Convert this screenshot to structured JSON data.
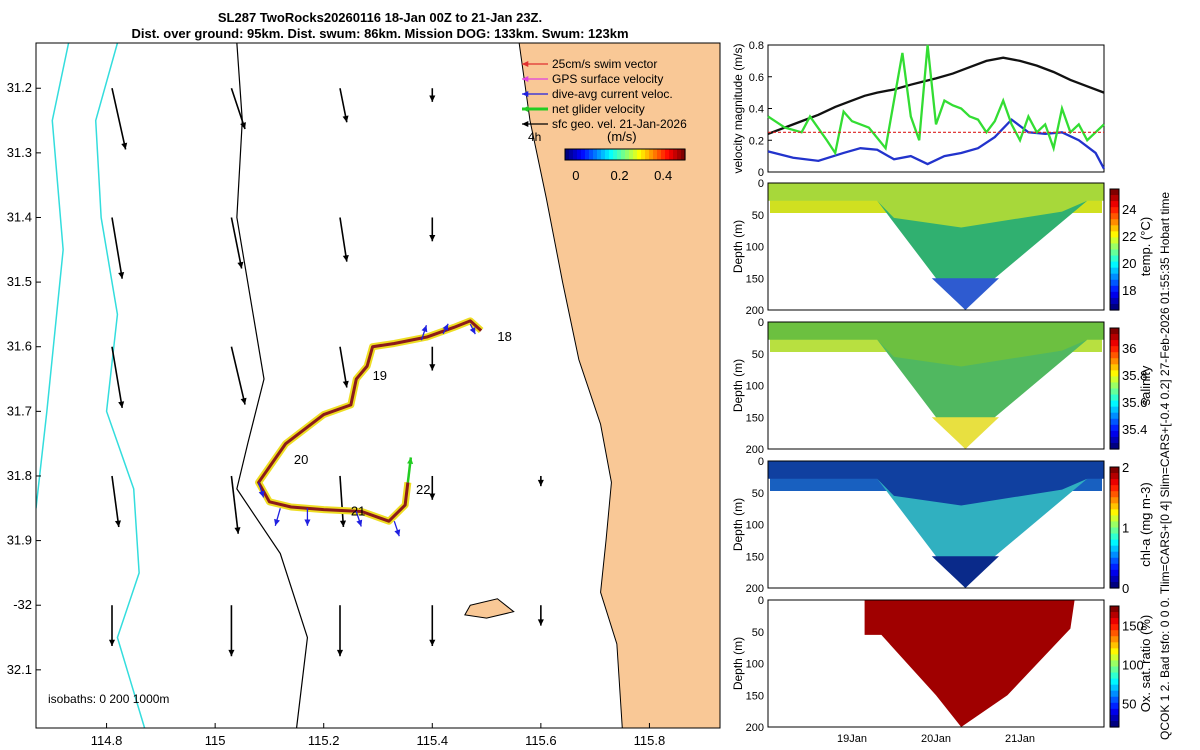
{
  "header": {
    "line1": "SL287 TwoRocks20260116 18-Jan 00Z to 21-Jan 23Z.",
    "line2": "Dist. over ground: 95km. Dist. swum: 86km. Mission DOG: 133km. Swum: 123km"
  },
  "side_note": "QCOK 1  2. Bad tsfo: 0  0  0. Tlim=CARS+[0 4] Slim=CARS+[-0.4 0.2] 27-Feb-2026 01:55:35 Hobart time",
  "colors": {
    "land": "#F9C896",
    "isobath": "#33DDDD",
    "swim": "#E03030",
    "gps": "#E040E0",
    "current": "#2020E0",
    "net": "#22CC22",
    "geo": "#000000",
    "track": "#8B1A1A"
  },
  "chart_data": [
    {
      "type": "map",
      "title": "Glider track map",
      "xlabel": "",
      "ylabel": "",
      "xlim": [
        114.67,
        115.93
      ],
      "ylim": [
        -32.19,
        -31.13
      ],
      "x_ticks": [
        114.8,
        115,
        115.2,
        115.4,
        115.6,
        115.8
      ],
      "x_tick_labels": [
        "114.8",
        "115",
        "115.2",
        "115.4",
        "115.6",
        "115.8"
      ],
      "y_ticks": [
        -31.2,
        -31.3,
        -31.4,
        -31.5,
        -31.6,
        -31.7,
        -31.8,
        -31.9,
        -32.0,
        -32.1
      ],
      "y_tick_labels": [
        "31.2",
        "31.3",
        "31.4",
        "31.5",
        "31.6",
        "31.7",
        "31.8",
        "31.9",
        "-32",
        "32.1"
      ],
      "legend": [
        "25cm/s swim vector",
        "GPS surface velocity",
        "dive-avg current veloc.",
        "net glider velocity",
        "sfc geo. vel. 21-Jan-2026"
      ],
      "legend_position": "top-right",
      "scale_label": "4h",
      "colorbar": {
        "label": "(m/s)",
        "ticks": [
          0,
          0.2,
          0.4
        ],
        "range": [
          -0.05,
          0.5
        ]
      },
      "isobaths_label": "isobaths: 0   200   1000m",
      "isobaths": [
        0,
        200,
        1000
      ],
      "coast": [
        [
          115.56,
          -31.13
        ],
        [
          115.58,
          -31.25
        ],
        [
          115.61,
          -31.37
        ],
        [
          115.64,
          -31.5
        ],
        [
          115.67,
          -31.62
        ],
        [
          115.71,
          -31.72
        ],
        [
          115.73,
          -31.81
        ],
        [
          115.72,
          -31.9
        ],
        [
          115.71,
          -31.98
        ],
        [
          115.74,
          -32.06
        ],
        [
          115.75,
          -32.19
        ]
      ],
      "island": [
        [
          115.47,
          -32.0
        ],
        [
          115.52,
          -31.99
        ],
        [
          115.55,
          -32.01
        ],
        [
          115.5,
          -32.02
        ],
        [
          115.46,
          -32.015
        ]
      ],
      "contour_200": [
        [
          115.04,
          -31.13
        ],
        [
          115.05,
          -31.25
        ],
        [
          115.04,
          -31.4
        ],
        [
          115.07,
          -31.55
        ],
        [
          115.09,
          -31.65
        ],
        [
          115.06,
          -31.75
        ],
        [
          115.04,
          -31.82
        ],
        [
          115.12,
          -31.92
        ],
        [
          115.17,
          -32.05
        ],
        [
          115.15,
          -32.19
        ]
      ],
      "contour_1000": [
        [
          114.82,
          -31.13
        ],
        [
          114.78,
          -31.25
        ],
        [
          114.79,
          -31.4
        ],
        [
          114.82,
          -31.55
        ],
        [
          114.8,
          -31.7
        ],
        [
          114.85,
          -31.82
        ],
        [
          114.86,
          -31.95
        ],
        [
          114.82,
          -32.05
        ],
        [
          114.87,
          -32.19
        ]
      ],
      "isobath_0": [
        [
          114.67,
          -31.85
        ],
        [
          114.69,
          -31.7
        ],
        [
          114.72,
          -31.45
        ],
        [
          114.7,
          -31.25
        ],
        [
          114.73,
          -31.13
        ]
      ],
      "track": [
        [
          115.49,
          -31.575
        ],
        [
          115.47,
          -31.56
        ],
        [
          115.44,
          -31.57
        ],
        [
          115.39,
          -31.585
        ],
        [
          115.33,
          -31.595
        ],
        [
          115.29,
          -31.6
        ],
        [
          115.28,
          -31.63
        ],
        [
          115.26,
          -31.65
        ],
        [
          115.25,
          -31.69
        ],
        [
          115.2,
          -31.705
        ],
        [
          115.13,
          -31.75
        ],
        [
          115.08,
          -31.81
        ],
        [
          115.1,
          -31.84
        ],
        [
          115.14,
          -31.848
        ],
        [
          115.2,
          -31.852
        ],
        [
          115.27,
          -31.855
        ],
        [
          115.32,
          -31.87
        ],
        [
          115.35,
          -31.845
        ],
        [
          115.355,
          -31.81
        ]
      ],
      "day_labels": [
        {
          "text": "18",
          "x": 115.52,
          "y": -31.585
        },
        {
          "text": "19",
          "x": 115.29,
          "y": -31.645
        },
        {
          "text": "20",
          "x": 115.145,
          "y": -31.775
        },
        {
          "text": "21",
          "x": 115.25,
          "y": -31.855
        },
        {
          "text": "22",
          "x": 115.37,
          "y": -31.822
        }
      ],
      "vectors": [
        {
          "x": 114.81,
          "y": -31.2,
          "u": 0.04,
          "v": -0.18
        },
        {
          "x": 115.03,
          "y": -31.2,
          "u": 0.04,
          "v": -0.12
        },
        {
          "x": 115.23,
          "y": -31.2,
          "u": 0.02,
          "v": -0.1
        },
        {
          "x": 115.4,
          "y": -31.2,
          "u": 0.0,
          "v": -0.04
        },
        {
          "x": 114.81,
          "y": -31.4,
          "u": 0.03,
          "v": -0.18
        },
        {
          "x": 115.03,
          "y": -31.4,
          "u": 0.03,
          "v": -0.15
        },
        {
          "x": 115.23,
          "y": -31.4,
          "u": 0.02,
          "v": -0.13
        },
        {
          "x": 115.4,
          "y": -31.4,
          "u": 0.0,
          "v": -0.07
        },
        {
          "x": 114.81,
          "y": -31.6,
          "u": 0.03,
          "v": -0.18
        },
        {
          "x": 115.03,
          "y": -31.6,
          "u": 0.04,
          "v": -0.17
        },
        {
          "x": 115.23,
          "y": -31.6,
          "u": 0.02,
          "v": -0.12
        },
        {
          "x": 115.4,
          "y": -31.6,
          "u": 0.0,
          "v": -0.07
        },
        {
          "x": 114.81,
          "y": -31.8,
          "u": 0.02,
          "v": -0.15
        },
        {
          "x": 115.03,
          "y": -31.8,
          "u": 0.02,
          "v": -0.17
        },
        {
          "x": 115.23,
          "y": -31.8,
          "u": 0.01,
          "v": -0.15
        },
        {
          "x": 115.4,
          "y": -31.8,
          "u": 0.0,
          "v": -0.07
        },
        {
          "x": 115.6,
          "y": -31.8,
          "u": 0.0,
          "v": -0.03
        },
        {
          "x": 114.81,
          "y": -32.0,
          "u": 0.0,
          "v": -0.12
        },
        {
          "x": 115.03,
          "y": -32.0,
          "u": 0.0,
          "v": -0.15
        },
        {
          "x": 115.23,
          "y": -32.0,
          "u": 0.0,
          "v": -0.15
        },
        {
          "x": 115.4,
          "y": -32.0,
          "u": 0.0,
          "v": -0.12
        },
        {
          "x": 115.6,
          "y": -32.0,
          "u": 0.0,
          "v": -0.06
        }
      ],
      "current_vectors": [
        {
          "x": 115.08,
          "y": -31.81,
          "u": 0.01,
          "v": -0.03
        },
        {
          "x": 115.12,
          "y": -31.85,
          "u": -0.01,
          "v": -0.035
        },
        {
          "x": 115.17,
          "y": -31.85,
          "u": 0.0,
          "v": -0.035
        },
        {
          "x": 115.26,
          "y": -31.855,
          "u": 0.01,
          "v": -0.03
        },
        {
          "x": 115.33,
          "y": -31.87,
          "u": 0.01,
          "v": -0.03
        },
        {
          "x": 115.38,
          "y": -31.59,
          "u": 0.01,
          "v": 0.03
        },
        {
          "x": 115.42,
          "y": -31.58,
          "u": 0.01,
          "v": 0.02
        },
        {
          "x": 115.47,
          "y": -31.565,
          "u": 0.01,
          "v": -0.02
        }
      ]
    },
    {
      "type": "line",
      "title": "",
      "ylabel": "velocity magnitude (m/s)",
      "ylim": [
        0,
        0.8
      ],
      "yticks": [
        0,
        0.2,
        0.4,
        0.6,
        0.8
      ],
      "series": [
        {
          "name": "sfc geo. vel.",
          "color": "#111111",
          "x": [
            0,
            0.3,
            0.6,
            0.8,
            1.0,
            1.15,
            1.3,
            1.5,
            1.7,
            1.85,
            2.0,
            2.2,
            2.4,
            2.6,
            2.8,
            3.0,
            3.2,
            3.4,
            3.6,
            3.8,
            4.0
          ],
          "values": [
            0.24,
            0.3,
            0.36,
            0.41,
            0.45,
            0.48,
            0.5,
            0.52,
            0.55,
            0.57,
            0.59,
            0.62,
            0.66,
            0.7,
            0.72,
            0.7,
            0.67,
            0.63,
            0.58,
            0.54,
            0.5
          ]
        },
        {
          "name": "dive-avg current veloc.",
          "color": "#2233CC",
          "x": [
            0,
            0.3,
            0.6,
            0.9,
            1.1,
            1.3,
            1.5,
            1.7,
            1.9,
            2.1,
            2.3,
            2.5,
            2.7,
            2.9,
            3.1,
            3.3,
            3.5,
            3.7,
            3.9,
            4.0
          ],
          "values": [
            0.13,
            0.09,
            0.07,
            0.12,
            0.15,
            0.14,
            0.08,
            0.1,
            0.05,
            0.1,
            0.12,
            0.15,
            0.22,
            0.33,
            0.25,
            0.24,
            0.25,
            0.2,
            0.12,
            0.02
          ]
        },
        {
          "name": "net glider velocity",
          "color": "#33DD33",
          "x": [
            0,
            0.2,
            0.4,
            0.5,
            0.7,
            0.8,
            0.9,
            1.0,
            1.2,
            1.4,
            1.6,
            1.7,
            1.8,
            1.9,
            2.0,
            2.1,
            2.2,
            2.3,
            2.4,
            2.5,
            2.6,
            2.7,
            2.8,
            2.9,
            3.0,
            3.1,
            3.2,
            3.3,
            3.4,
            3.5,
            3.6,
            3.7,
            3.8,
            3.9,
            4.0
          ],
          "values": [
            0.35,
            0.28,
            0.25,
            0.35,
            0.2,
            0.12,
            0.38,
            0.32,
            0.28,
            0.15,
            0.75,
            0.35,
            0.2,
            0.8,
            0.3,
            0.45,
            0.42,
            0.4,
            0.35,
            0.33,
            0.25,
            0.32,
            0.45,
            0.3,
            0.2,
            0.35,
            0.25,
            0.3,
            0.15,
            0.4,
            0.25,
            0.3,
            0.2,
            0.25,
            0.3
          ]
        },
        {
          "name": "25cm/s swim vector",
          "color": "#DD2222",
          "x": [
            0,
            4.0
          ],
          "values": [
            0.25,
            0.25
          ]
        }
      ]
    },
    {
      "type": "heatmap",
      "ylabel": "Depth (m)",
      "ylim": [
        0,
        200
      ],
      "yticks": [
        0,
        50,
        100,
        150,
        200
      ],
      "colorbar_label": "temp. (°C)",
      "colorbar_ticks": [
        18,
        20,
        22,
        24
      ],
      "colorbar_range": [
        16.5,
        25.5
      ]
    },
    {
      "type": "heatmap",
      "ylabel": "Depth (m)",
      "ylim": [
        0,
        200
      ],
      "yticks": [
        0,
        50,
        100,
        150,
        200
      ],
      "colorbar_label": "salinity",
      "colorbar_ticks": [
        35.4,
        35.6,
        35.8,
        36
      ],
      "colorbar_range": [
        35.25,
        36.15
      ]
    },
    {
      "type": "heatmap",
      "ylabel": "Depth (m)",
      "ylim": [
        0,
        200
      ],
      "yticks": [
        0,
        50,
        100,
        150,
        200
      ],
      "colorbar_label": "chl-a (mg m-3)",
      "colorbar_ticks": [
        0,
        1,
        2
      ],
      "colorbar_range": [
        0,
        2
      ]
    },
    {
      "type": "heatmap",
      "ylabel": "Depth (m)",
      "ylim": [
        0,
        200
      ],
      "yticks": [
        0,
        50,
        100,
        150,
        200
      ],
      "colorbar_label": "Ox. sat. ratio (%)",
      "colorbar_ticks": [
        50,
        100,
        150
      ],
      "colorbar_range": [
        20,
        175
      ],
      "x_ticks": [
        1,
        2,
        3
      ],
      "x_tick_labels": [
        "19Jan",
        "20Jan",
        "21Jan"
      ],
      "xlim": [
        0,
        4
      ]
    }
  ]
}
